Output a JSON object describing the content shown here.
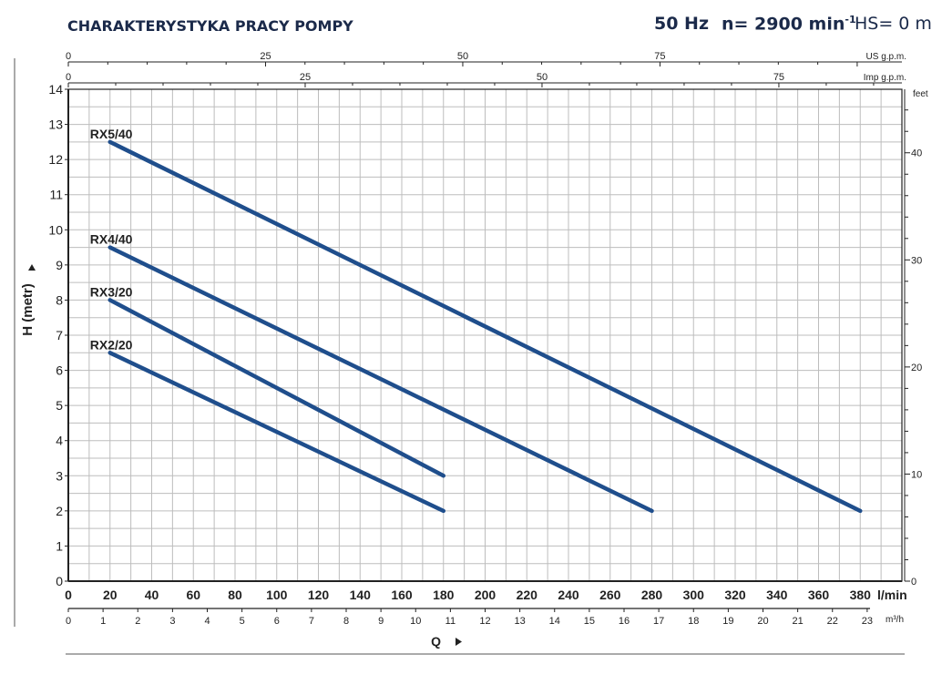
{
  "title": "CHARAKTERYSTYKA PRACY POMPY",
  "freq": "50 Hz",
  "speed": "n= 2900 min",
  "speed_sup": "-1",
  "hs": "HS= 0 m",
  "colors": {
    "curve": "#1f4e8c",
    "grid": "#bdbdbd",
    "axis": "#222222",
    "title": "#1b2a4a"
  },
  "chart_data": {
    "type": "line",
    "ylabel": "H (metr)",
    "xlabel": "Q",
    "x_unit": "l/min",
    "xlim": [
      0,
      400
    ],
    "ylim": [
      0,
      14
    ],
    "grid": true,
    "x_ticks": [
      0,
      20,
      40,
      60,
      80,
      100,
      120,
      140,
      160,
      180,
      200,
      220,
      240,
      260,
      280,
      300,
      320,
      340,
      360,
      380
    ],
    "y_ticks": [
      0,
      1,
      2,
      3,
      4,
      5,
      6,
      7,
      8,
      9,
      10,
      11,
      12,
      13,
      14
    ],
    "m3h_unit": "m³/h",
    "m3h_ticks": [
      0,
      1,
      2,
      3,
      4,
      5,
      6,
      7,
      8,
      9,
      10,
      11,
      12,
      13,
      14,
      15,
      16,
      17,
      18,
      19,
      20,
      21,
      22,
      23
    ],
    "us_gpm_unit": "US g.p.m.",
    "us_gpm_ticks": [
      0,
      25,
      50,
      75
    ],
    "imp_gpm_unit": "Imp g.p.m.",
    "imp_gpm_ticks": [
      0,
      25,
      50,
      75
    ],
    "feet_unit": "feet",
    "feet_ticks": [
      0,
      10,
      20,
      30,
      40
    ],
    "series": [
      {
        "name": "RX5/40",
        "x": [
          20,
          380
        ],
        "y": [
          12.5,
          2.0
        ]
      },
      {
        "name": "RX4/40",
        "x": [
          20,
          280
        ],
        "y": [
          9.5,
          2.0
        ]
      },
      {
        "name": "RX3/20",
        "x": [
          20,
          180
        ],
        "y": [
          8.0,
          3.0
        ]
      },
      {
        "name": "RX2/20",
        "x": [
          20,
          180
        ],
        "y": [
          6.5,
          2.0
        ]
      }
    ]
  }
}
